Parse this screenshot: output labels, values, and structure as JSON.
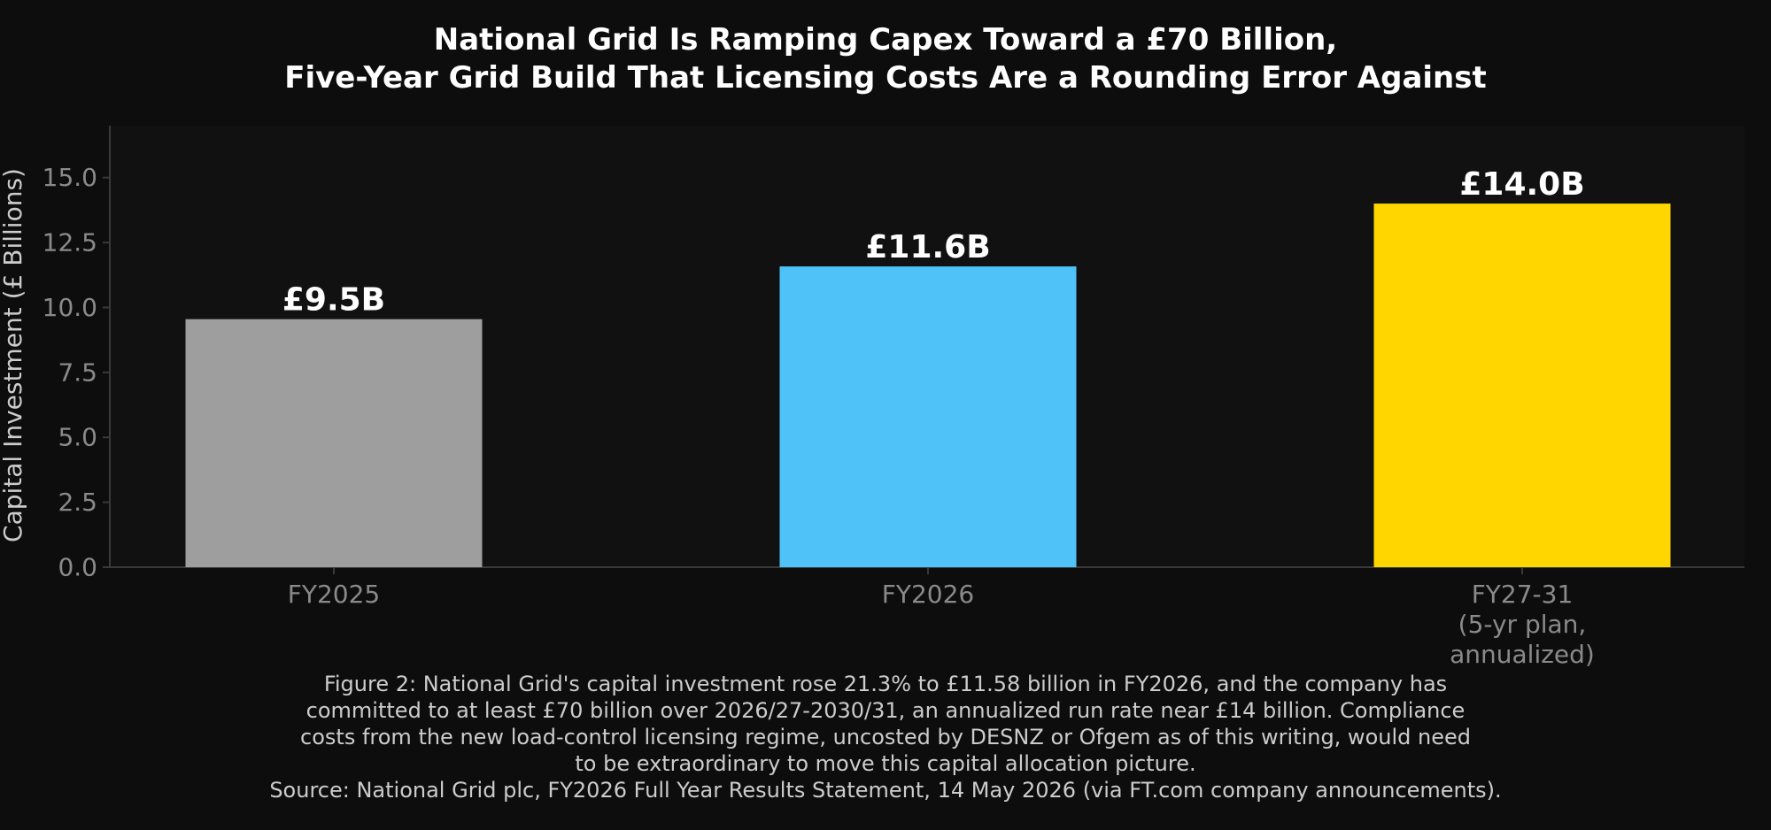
{
  "title_lines": [
    "National Grid Is Ramping Capex Toward a £70 Billion,",
    "Five-Year Grid Build That Licensing Costs Are a Rounding Error Against"
  ],
  "caption_lines": [
    "Figure 2: National Grid's capital investment rose 21.3% to £11.58 billion in FY2026, and the company has",
    "committed to at least £70 billion over 2026/27-2030/31, an annualized run rate near £14 billion. Compliance",
    "costs from the new load-control licensing regime, uncosted by DESNZ or Ofgem as of this writing, would need",
    "to be extraordinary to move this capital allocation picture.",
    "Source: National Grid plc, FY2026 Full Year Results Statement, 14 May 2026 (via FT.com company announcements)."
  ],
  "colors": {
    "background": "#0d0d0d",
    "plot_background": "#111111",
    "axis": "#3a3a3a",
    "tick_text": "#8a8a8a",
    "label_text": "#cccccc",
    "value_label": "#ffffff"
  },
  "chart_data": {
    "type": "bar",
    "title": "National Grid Is Ramping Capex Toward a £70 Billion, Five-Year Grid Build That Licensing Costs Are a Rounding Error Against",
    "xlabel": "",
    "ylabel": "Capital Investment (£ Billions)",
    "ylim": [
      0,
      17
    ],
    "yticks": [
      "0.0",
      "2.5",
      "5.0",
      "7.5",
      "10.0",
      "12.5",
      "15.0"
    ],
    "ytick_values": [
      0,
      2.5,
      5,
      7.5,
      10,
      12.5,
      15
    ],
    "grid": false,
    "categories": [
      [
        "FY2025"
      ],
      [
        "FY2026"
      ],
      [
        "FY27-31",
        "(5-yr plan,",
        "annualized)"
      ]
    ],
    "values": [
      9.55,
      11.58,
      14.0
    ],
    "value_labels": [
      "£9.5B",
      "£11.6B",
      "£14.0B"
    ],
    "bar_colors": [
      "#9e9e9e",
      "#4fc3f7",
      "#ffd600"
    ]
  }
}
